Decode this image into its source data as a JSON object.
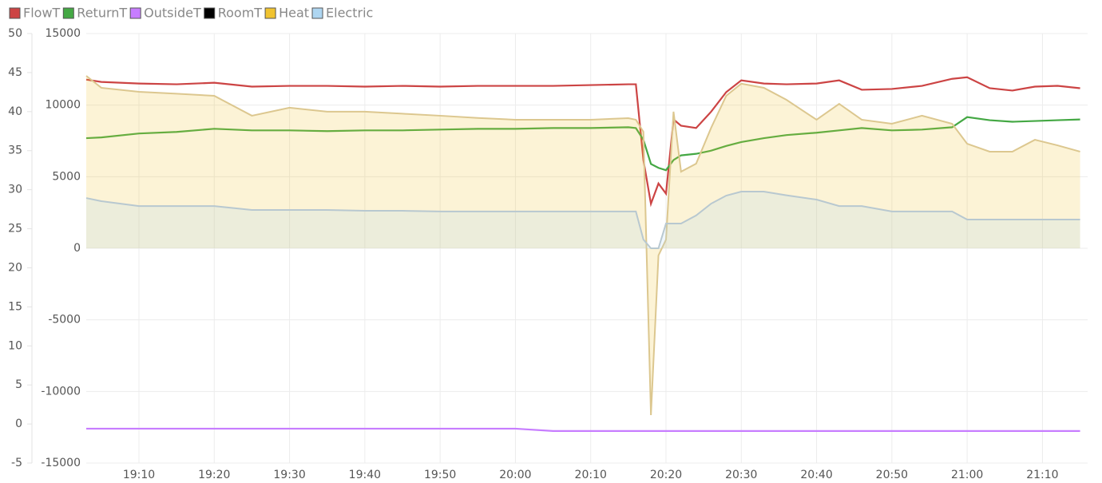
{
  "chart_data": {
    "type": "line",
    "x": [
      "19:03",
      "19:05",
      "19:10",
      "19:15",
      "19:20",
      "19:25",
      "19:30",
      "19:35",
      "19:40",
      "19:45",
      "19:50",
      "19:55",
      "20:00",
      "20:05",
      "20:10",
      "20:15",
      "20:16",
      "20:17",
      "20:18",
      "20:19",
      "20:20",
      "20:21",
      "20:22",
      "20:24",
      "20:26",
      "20:28",
      "20:30",
      "20:33",
      "20:36",
      "20:40",
      "20:43",
      "20:46",
      "20:50",
      "20:54",
      "20:58",
      "21:00",
      "21:03",
      "21:06",
      "21:09",
      "21:12",
      "21:15"
    ],
    "xlim": [
      "19:03",
      "21:16"
    ],
    "xticks": [
      "19:10",
      "19:20",
      "19:30",
      "19:40",
      "19:50",
      "20:00",
      "20:10",
      "20:20",
      "20:30",
      "20:40",
      "20:50",
      "21:00",
      "21:10"
    ],
    "ylim": [
      -5,
      50
    ],
    "yticks": [
      -5,
      0,
      5,
      10,
      15,
      20,
      25,
      30,
      35,
      40,
      45,
      50
    ],
    "y2lim": [
      -15000,
      15000
    ],
    "y2ticks": [
      -15000,
      -10000,
      -5000,
      0,
      5000,
      10000,
      15000
    ],
    "grid": true,
    "series": [
      {
        "name": "FlowT",
        "color": "#cc4444",
        "axis": "y",
        "values": [
          44.1,
          43.8,
          43.6,
          43.5,
          43.7,
          43.2,
          43.3,
          43.3,
          43.2,
          43.3,
          43.2,
          43.3,
          43.3,
          43.3,
          43.4,
          43.5,
          43.5,
          33.8,
          28.2,
          30.8,
          29.5,
          39.0,
          38.2,
          37.9,
          40.0,
          42.5,
          44.0,
          43.6,
          43.5,
          43.6,
          44.0,
          42.8,
          42.9,
          43.3,
          44.2,
          44.4,
          43.0,
          42.7,
          43.2,
          43.3,
          43.0
        ]
      },
      {
        "name": "ReturnT",
        "color": "#44a844",
        "axis": "y",
        "values": [
          36.6,
          36.7,
          37.2,
          37.4,
          37.8,
          37.6,
          37.6,
          37.5,
          37.6,
          37.6,
          37.7,
          37.8,
          37.8,
          37.9,
          37.9,
          38.0,
          37.9,
          36.4,
          33.3,
          32.8,
          32.5,
          33.8,
          34.4,
          34.6,
          35.0,
          35.6,
          36.1,
          36.6,
          37.0,
          37.3,
          37.6,
          37.9,
          37.6,
          37.7,
          38.0,
          39.3,
          38.9,
          38.7,
          38.8,
          38.9,
          39.0
        ]
      },
      {
        "name": "OutsideT",
        "color": "#c77dff",
        "axis": "y",
        "values": [
          -0.6,
          -0.6,
          -0.6,
          -0.6,
          -0.6,
          -0.6,
          -0.6,
          -0.6,
          -0.6,
          -0.6,
          -0.6,
          -0.6,
          -0.6,
          -0.9,
          -0.9,
          -0.9,
          -0.9,
          -0.9,
          -0.9,
          -0.9,
          -0.9,
          -0.9,
          -0.9,
          -0.9,
          -0.9,
          -0.9,
          -0.9,
          -0.9,
          -0.9,
          -0.9,
          -0.9,
          -0.9,
          -0.9,
          -0.9,
          -0.9,
          -0.9,
          -0.9,
          -0.9,
          -0.9,
          -0.9,
          -0.9
        ]
      },
      {
        "name": "RoomT",
        "color": "#000000",
        "axis": "y",
        "values": [
          null,
          null,
          null,
          null,
          null,
          null,
          null,
          null,
          null,
          null,
          null,
          null,
          null,
          null,
          null,
          null,
          null,
          null,
          null,
          null,
          null,
          null,
          null,
          null,
          null,
          null,
          null,
          null,
          null,
          null,
          null,
          null,
          null,
          null,
          null,
          null,
          null,
          null,
          null,
          null,
          null
        ]
      },
      {
        "name": "Heat",
        "color": "#f0c330",
        "axis": "y2",
        "area": true,
        "values": [
          12045,
          11210,
          10930,
          10800,
          10650,
          9260,
          9820,
          9540,
          9540,
          9400,
          9260,
          9100,
          8980,
          8980,
          8980,
          9090,
          8980,
          8140,
          -11650,
          -500,
          600,
          9540,
          5350,
          5910,
          8420,
          10650,
          11500,
          11210,
          10370,
          8980,
          10090,
          8980,
          8700,
          9260,
          8700,
          7300,
          6750,
          6750,
          7580,
          7190,
          6750
        ]
      },
      {
        "name": "Electric",
        "color": "#aed6f1",
        "axis": "y2",
        "area": true,
        "values": [
          3510,
          3290,
          2950,
          2950,
          2950,
          2680,
          2680,
          2680,
          2620,
          2620,
          2570,
          2570,
          2570,
          2570,
          2570,
          2570,
          2570,
          610,
          0,
          0,
          1730,
          1730,
          1730,
          2290,
          3120,
          3680,
          3960,
          3960,
          3700,
          3400,
          2950,
          2950,
          2570,
          2570,
          2570,
          2010,
          2010,
          2010,
          2010,
          2010,
          2010
        ]
      }
    ]
  }
}
